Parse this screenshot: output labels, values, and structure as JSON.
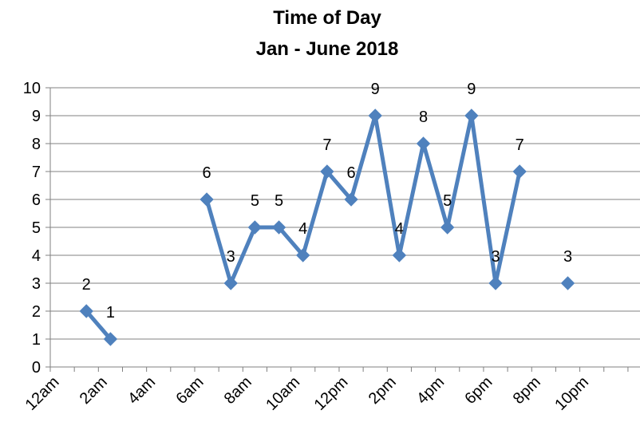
{
  "chart_data": {
    "type": "line",
    "title": "Time of Day",
    "subtitle": "Jan - June 2018",
    "xlabel": "",
    "ylabel": "",
    "ylim": [
      0,
      10
    ],
    "yticks": [
      0,
      1,
      2,
      3,
      4,
      5,
      6,
      7,
      8,
      9,
      10
    ],
    "categories": [
      "12am",
      "1am",
      "2am",
      "3am",
      "4am",
      "5am",
      "6am",
      "7am",
      "8am",
      "9am",
      "10am",
      "11am",
      "12pm",
      "1pm",
      "2pm",
      "3pm",
      "4pm",
      "5pm",
      "6pm",
      "7pm",
      "8pm",
      "9pm",
      "10pm",
      "11pm"
    ],
    "x_tick_labels": [
      "12am",
      "2am",
      "4am",
      "6am",
      "8am",
      "10am",
      "12pm",
      "2pm",
      "4pm",
      "6pm",
      "8pm",
      "10pm"
    ],
    "series": [
      {
        "values": [
          null,
          2,
          1,
          null,
          null,
          null,
          6,
          3,
          5,
          5,
          4,
          7,
          6,
          9,
          4,
          8,
          5,
          9,
          3,
          7,
          null,
          3,
          null,
          null
        ],
        "color": "#4F81BD"
      }
    ],
    "data_labels": true,
    "grid": true,
    "legend": "none",
    "colors": {
      "series": "#4F81BD",
      "grid": "#808080",
      "axis": "#808080"
    }
  }
}
